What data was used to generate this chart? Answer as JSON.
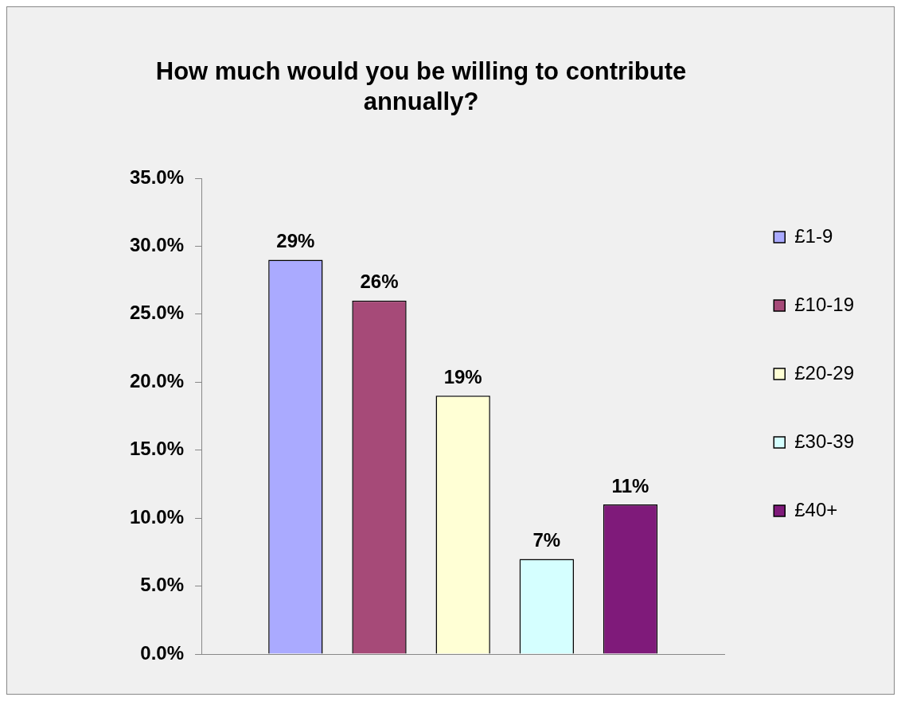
{
  "chart_data": {
    "type": "bar",
    "title": "How much would you be willing to contribute annually?",
    "categories": [
      null
    ],
    "series": [
      {
        "name": "£1-9",
        "color": "#aaaaff",
        "values": [
          29
        ],
        "value_labels": [
          "29%"
        ]
      },
      {
        "name": "£10-19",
        "color": "#a64a78",
        "values": [
          26
        ],
        "value_labels": [
          "26%"
        ]
      },
      {
        "name": "£20-29",
        "color": "#ffffd5",
        "values": [
          19
        ],
        "value_labels": [
          "19%"
        ]
      },
      {
        "name": "£30-39",
        "color": "#d5ffff",
        "values": [
          7
        ],
        "value_labels": [
          "7%"
        ]
      },
      {
        "name": "£40+",
        "color": "#7f1a7a",
        "values": [
          11
        ],
        "value_labels": [
          "11%"
        ]
      }
    ],
    "ylim": [
      0,
      35
    ],
    "yticks": [
      {
        "value": 0,
        "label": "0.0%"
      },
      {
        "value": 5,
        "label": "5.0%"
      },
      {
        "value": 10,
        "label": "10.0%"
      },
      {
        "value": 15,
        "label": "15.0%"
      },
      {
        "value": 20,
        "label": "20.0%"
      },
      {
        "value": 25,
        "label": "25.0%"
      },
      {
        "value": 30,
        "label": "30.0%"
      },
      {
        "value": 35,
        "label": "35.0%"
      }
    ],
    "tick_labels": "y",
    "legend": "right",
    "grid": false
  }
}
